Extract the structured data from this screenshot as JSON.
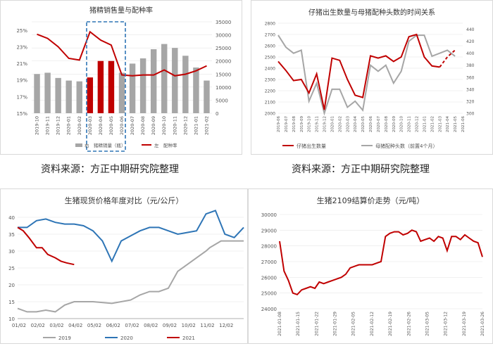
{
  "charts": {
    "c1": {
      "title": "猪精销售量与配种率",
      "legend": [
        "右　猪精销量（瓶）",
        "左　配种率"
      ],
      "caption": "资料来源：方正中期研究院整理"
    },
    "c2": {
      "title": "仔猪出生数量与母猪配种头数的时间关系",
      "legend": [
        "仔猪出生数量",
        "母猪配种头数（前置4个月）"
      ],
      "caption": "资料来源：方正中期研究院整理"
    },
    "c3": {
      "title": "生猪现货价格年度对比（元/公斤）",
      "legend": [
        "2019",
        "2020",
        "2021"
      ]
    },
    "c4": {
      "title": "生猪2109结算价走势（元/吨）"
    }
  },
  "chart_data": [
    {
      "type": "bar",
      "title": "猪精销售量与配种率",
      "categories": [
        "2019-10",
        "2019-11",
        "2019-12",
        "2020-01",
        "2020-02",
        "2020-03",
        "2020-04",
        "2020-05",
        "2020-06",
        "2020-07",
        "2020-08",
        "2020-09",
        "2020-10",
        "2020-11",
        "2020-12",
        "2021-01",
        "2021-02"
      ],
      "series": [
        {
          "name": "猪精销量（瓶）",
          "axis": "right",
          "values": [
            15000,
            15500,
            13500,
            12500,
            12200,
            13700,
            20000,
            20000,
            15500,
            19000,
            21000,
            24500,
            26500,
            25000,
            22000,
            17500,
            12500
          ],
          "colors": [
            "#a6a6a6",
            "#a6a6a6",
            "#a6a6a6",
            "#a6a6a6",
            "#a6a6a6",
            "#c00000",
            "#c00000",
            "#c00000",
            "#a6a6a6",
            "#a6a6a6",
            "#a6a6a6",
            "#a6a6a6",
            "#a6a6a6",
            "#a6a6a6",
            "#a6a6a6",
            "#a6a6a6",
            "#a6a6a6"
          ]
        },
        {
          "name": "配种率",
          "axis": "left",
          "values": [
            24.5,
            24.0,
            23.0,
            21.6,
            21.4,
            24.8,
            23.8,
            23.2,
            19.6,
            19.5,
            19.6,
            19.6,
            20.2,
            19.5,
            19.7,
            20.1,
            20.7
          ]
        }
      ],
      "ylim_left": [
        15,
        26
      ],
      "yticks_left": [
        "15%",
        "17%",
        "19%",
        "21%",
        "23%",
        "25%"
      ],
      "ylim_right": [
        0,
        35000
      ],
      "yticks_right": [
        "0",
        "5000",
        "10000",
        "15000",
        "20000",
        "25000",
        "30000",
        "35000"
      ],
      "colors": {
        "bar": "#a6a6a6",
        "highlight": "#c00000",
        "line": "#c00000",
        "box": "#2e75b6"
      }
    },
    {
      "type": "line",
      "title": "仔猪出生数量与母猪配种头数的时间关系",
      "categories": [
        "2019-06",
        "2019-07",
        "2019-08",
        "2019-09",
        "2019-10",
        "2019-11",
        "2019-12",
        "2020-01",
        "2020-02",
        "2020-03",
        "2020-04",
        "2020-05",
        "2020-06",
        "2020-07",
        "2020-08",
        "2020-09",
        "2020-10",
        "2020-11",
        "2020-12",
        "2021-01",
        "2021-02",
        "2021-03",
        "2021-04",
        "2021-05",
        "2021-06"
      ],
      "series": [
        {
          "name": "仔猪出生数量",
          "axis": "left",
          "values": [
            2460,
            2380,
            2290,
            2300,
            2180,
            2350,
            2030,
            2490,
            2470,
            2300,
            2160,
            2140,
            2510,
            2490,
            2510,
            2460,
            2500,
            2680,
            2700,
            2500,
            2420,
            2410,
            null,
            null,
            null
          ],
          "projection": [
            null,
            null,
            null,
            null,
            null,
            null,
            null,
            null,
            null,
            null,
            null,
            null,
            null,
            null,
            null,
            null,
            null,
            null,
            null,
            null,
            null,
            2410,
            2500,
            2560,
            null
          ]
        },
        {
          "name": "母猪配种头数（前置4个月）",
          "axis": "right",
          "values": [
            430,
            410,
            400,
            405,
            320,
            350,
            300,
            340,
            340,
            310,
            320,
            305,
            380,
            370,
            380,
            350,
            370,
            420,
            430,
            430,
            395,
            400,
            405,
            395,
            null
          ]
        }
      ],
      "ylim_left": [
        2000,
        2800
      ],
      "yticks_left": [
        "2000",
        "2100",
        "2200",
        "2300",
        "2400",
        "2500",
        "2600",
        "2700",
        "2800"
      ],
      "ylim_right": [
        300,
        450
      ],
      "yticks_right": [
        "300",
        "320",
        "340",
        "360",
        "380",
        "400",
        "420",
        "440"
      ],
      "colors": {
        "piglet": "#c00000",
        "sow": "#a6a6a6"
      }
    },
    {
      "type": "line",
      "title": "生猪现货价格年度对比（元/公斤）",
      "x_ticks": [
        "01/02",
        "02/02",
        "03/02",
        "04/02",
        "05/02",
        "06/02",
        "07/02",
        "08/02",
        "09/02",
        "10/02",
        "11/02",
        "12/02"
      ],
      "ylim": [
        10,
        40
      ],
      "yticks": [
        "10",
        "15",
        "20",
        "25",
        "30",
        "35",
        "40"
      ],
      "series": [
        {
          "name": "2019",
          "x": [
            0,
            0.5,
            1,
            1.5,
            2,
            2.5,
            3,
            4,
            5,
            6,
            6.5,
            7,
            7.5,
            8,
            8.5,
            9,
            9.5,
            10,
            10.2,
            10.5,
            10.8,
            11,
            11.5,
            12
          ],
          "values": [
            13,
            12,
            12,
            12.5,
            12,
            14,
            15,
            15,
            14.5,
            15.5,
            17,
            18,
            18,
            19,
            24,
            26,
            28,
            30,
            31,
            32,
            33,
            33,
            33,
            33
          ],
          "color": "#a6a6a6"
        },
        {
          "name": "2020",
          "x": [
            0,
            0.5,
            1,
            1.5,
            2,
            2.5,
            3,
            3.5,
            4,
            4.5,
            5,
            5.5,
            6,
            6.5,
            7,
            7.5,
            8,
            8.5,
            9,
            9.5,
            10,
            10.5,
            11,
            11.5,
            12
          ],
          "values": [
            37,
            37,
            39,
            39.5,
            38.5,
            38,
            38,
            37.5,
            36,
            33,
            27,
            33,
            34.5,
            36,
            37,
            37,
            36,
            35,
            35.5,
            36,
            41,
            42,
            35,
            34,
            37
          ],
          "color": "#2e75b6"
        },
        {
          "name": "2021",
          "x": [
            0,
            0.3,
            0.6,
            1,
            1.3,
            1.6,
            2,
            2.3,
            2.6,
            3
          ],
          "values": [
            37,
            36,
            34,
            31,
            31,
            29,
            28,
            27,
            26.5,
            26
          ],
          "color": "#c00000"
        }
      ]
    },
    {
      "type": "line",
      "title": "生猪2109结算价走势（元/吨）",
      "x_ticks": [
        "2021-01-08",
        "2021-01-15",
        "2021-01-22",
        "2021-01-29",
        "2021-02-05",
        "2021-02-12",
        "2021-02-19",
        "2021-02-26",
        "2021-03-05",
        "2021-03-12",
        "2021-03-19",
        "2021-03-26"
      ],
      "ylim": [
        24000,
        30000
      ],
      "yticks": [
        "24000",
        "25000",
        "26000",
        "27000",
        "28000",
        "29000",
        "30000"
      ],
      "series": [
        {
          "name": "生猪2109",
          "values": [
            28300,
            26400,
            25800,
            25000,
            24900,
            25200,
            25300,
            25400,
            25300,
            25700,
            25600,
            25700,
            25800,
            25900,
            26000,
            26200,
            26600,
            26700,
            26800,
            26800,
            26800,
            26800,
            26900,
            27000,
            28600,
            28800,
            28900,
            28900,
            28700,
            28800,
            29000,
            28900,
            28300,
            28400,
            28500,
            28300,
            28600,
            28500,
            27700,
            28600,
            28600,
            28400,
            28700,
            28500,
            28300,
            28200,
            27300
          ],
          "color": "#c00000"
        }
      ]
    }
  ]
}
